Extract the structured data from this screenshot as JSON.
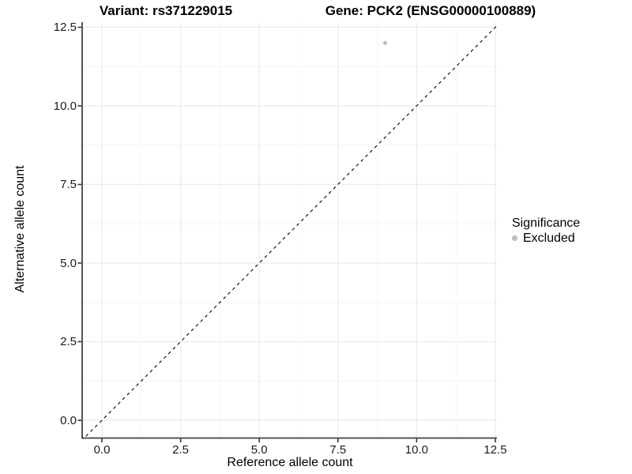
{
  "figure": {
    "title_left": "Variant: rs371229015",
    "title_right": "Gene: PCK2 (ENSG00000100889)"
  },
  "chart_data": {
    "type": "scatter",
    "title_left": "Variant: rs371229015",
    "title_right": "Gene: PCK2 (ENSG00000100889)",
    "xlabel": "Reference allele count",
    "ylabel": "Alternative allele count",
    "x_ticks": [
      "0.0",
      "2.5",
      "5.0",
      "7.5",
      "10.0",
      "12.5"
    ],
    "y_ticks": [
      "0.0",
      "2.5",
      "5.0",
      "7.5",
      "10.0",
      "12.5"
    ],
    "x_tick_values": [
      0,
      2.5,
      5,
      7.5,
      10,
      12.5
    ],
    "y_tick_values": [
      0,
      2.5,
      5,
      7.5,
      10,
      12.5
    ],
    "x_minor_values": [
      1.25,
      3.75,
      6.25,
      8.75,
      11.25
    ],
    "y_minor_values": [
      1.25,
      3.75,
      6.25,
      8.75,
      11.25
    ],
    "xlim": [
      -0.6,
      12.6
    ],
    "ylim": [
      -0.6,
      12.7
    ],
    "grid": true,
    "points": [
      {
        "x": 9,
        "y": 12,
        "series": "Excluded",
        "color": "#bebebe"
      }
    ],
    "reference_line": {
      "type": "identity y = x",
      "style": "dashed",
      "color": "#000000"
    },
    "legend": {
      "title": "Significance",
      "position": "right",
      "entries": [
        {
          "label": "Excluded",
          "color": "#bebebe"
        }
      ]
    }
  },
  "colors": {
    "background": "#ffffff",
    "grid_major": "#ebebeb",
    "grid_minor": "#f4f4f4",
    "axis_line": "#404040",
    "tick_mark": "#333333",
    "tick_text": "#1a1a1a",
    "point": "#bebebe"
  }
}
